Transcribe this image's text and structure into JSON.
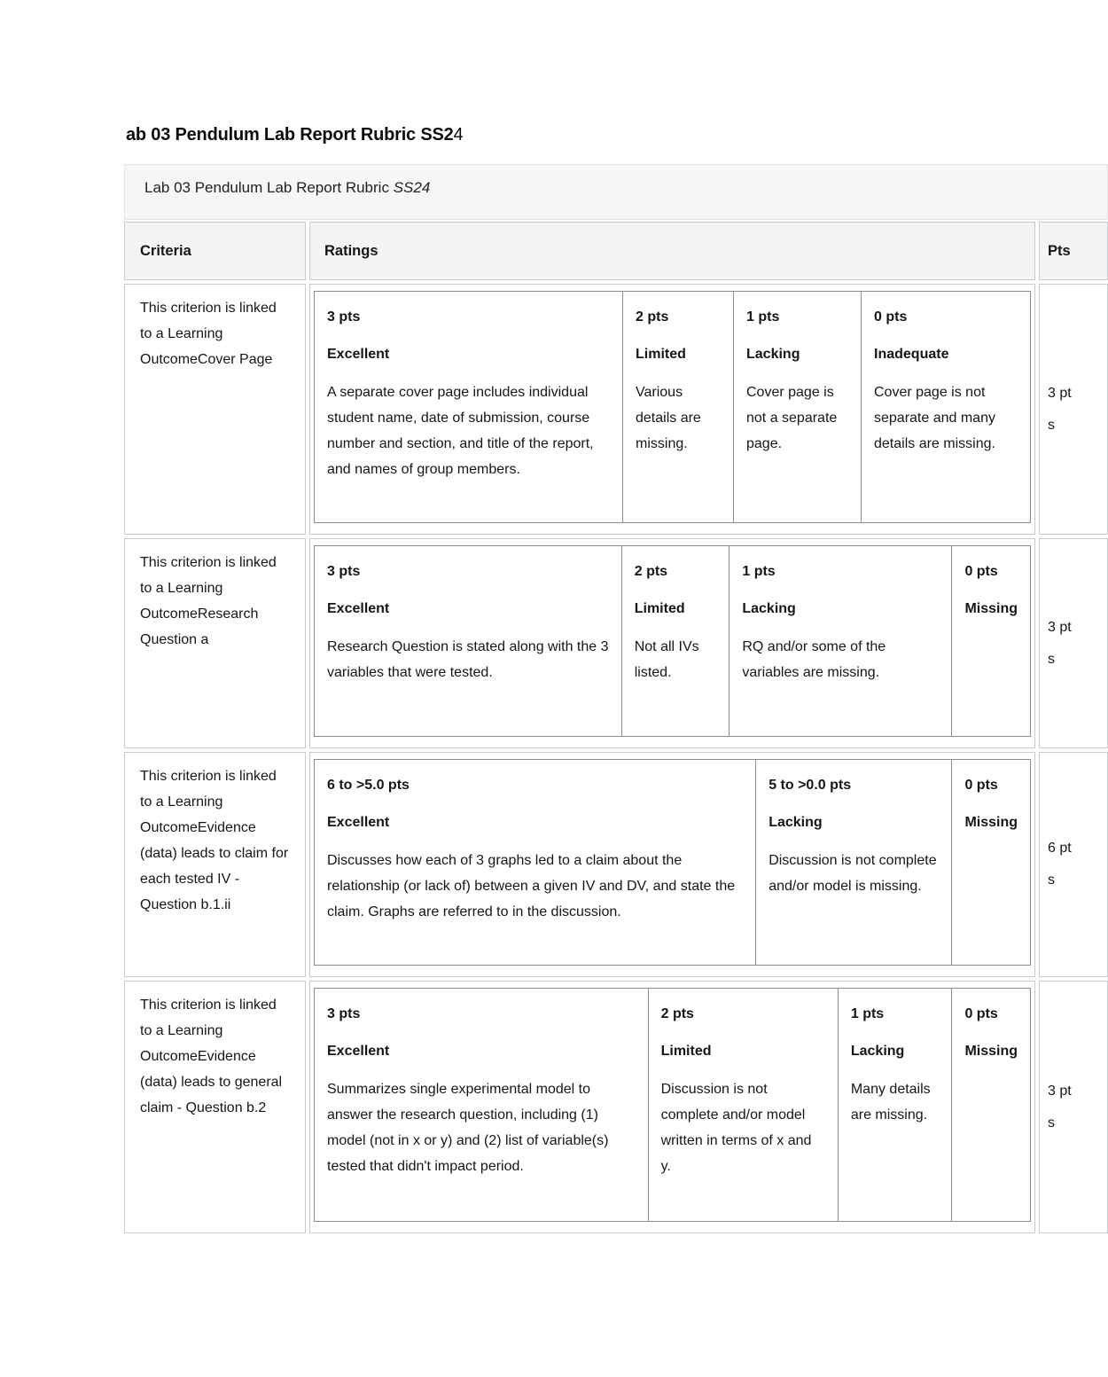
{
  "title": {
    "bold": "ab 03 Pendulum Lab Report Rubric SS2",
    "regular": "4"
  },
  "caption": {
    "text": "Lab 03 Pendulum Lab Report Rubric ",
    "italic": "SS24"
  },
  "table": {
    "headers": {
      "criteria": "Criteria",
      "ratings": "Ratings",
      "pts": "Pts"
    },
    "rows": [
      {
        "criterion": "This criterion is linked to a Learning OutcomeCover Page",
        "ratings": [
          {
            "points": "3 pts",
            "title": "Excellent",
            "description": "A separate cover page includes individual student name, date of submission, course number and section, and title of the report, and names of group members."
          },
          {
            "points": "2 pts",
            "title": "Limited",
            "description": "Various details are missing."
          },
          {
            "points": "1 pts",
            "title": "Lacking",
            "description": "Cover page is not a separate page."
          },
          {
            "points": "0 pts",
            "title": "Inadequate",
            "description": "Cover page is not separate and many details are missing."
          }
        ],
        "pts": "3 pts"
      },
      {
        "criterion": "This criterion is linked to a Learning OutcomeResearch Question a",
        "ratings": [
          {
            "points": "3 pts",
            "title": "Excellent",
            "description": "Research Question is stated along with the 3 variables that were tested."
          },
          {
            "points": "2 pts",
            "title": "Limited",
            "description": "Not all IVs listed."
          },
          {
            "points": "1 pts",
            "title": "Lacking",
            "description": "RQ and/or some of the variables are missing."
          },
          {
            "points": "0 pts",
            "title": "Missing"
          }
        ],
        "pts": "3 pts"
      },
      {
        "criterion": "This criterion is linked to a Learning OutcomeEvidence (data) leads to claim for each tested IV - Question b.1.ii",
        "ratings": [
          {
            "points": "6 to >5.0 pts",
            "title": "Excellent",
            "description": "Discusses how each of 3 graphs led to a claim about the relationship (or lack of) between a given IV and DV, and state the claim. Graphs are referred to in the discussion."
          },
          {
            "points": "5 to >0.0 pts",
            "title": "Lacking",
            "description": "Discussion is not complete and/or model is missing."
          },
          {
            "points": "0 pts",
            "title": "Missing"
          }
        ],
        "pts": "6 pts"
      },
      {
        "criterion": "This criterion is linked to a Learning OutcomeEvidence (data) leads to general claim - Question b.2",
        "ratings": [
          {
            "points": "3 pts",
            "title": "Excellent",
            "description": "Summarizes single experimental model to answer the research question, including (1) model (not in x or y) and (2) list of variable(s) tested that didn't impact period."
          },
          {
            "points": "2 pts",
            "title": "Limited",
            "description": "Discussion is not complete and/or model written in terms of x and y."
          },
          {
            "points": "1 pts",
            "title": "Lacking",
            "description": "Many details are missing."
          },
          {
            "points": "0 pts",
            "title": "Missing"
          }
        ],
        "pts": "3 pts"
      }
    ]
  }
}
